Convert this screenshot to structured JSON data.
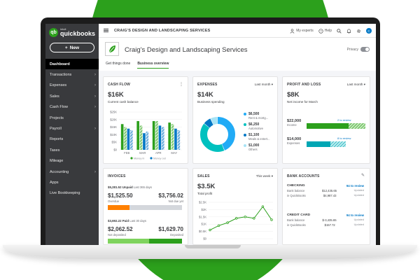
{
  "app": {
    "logo_small": "intuit",
    "logo_name": "quickbooks",
    "new_button": "New"
  },
  "sidebar": {
    "items": [
      {
        "label": "Dashboard",
        "active": true,
        "chevron": false
      },
      {
        "label": "Transactions",
        "chevron": true
      },
      {
        "label": "Expenses",
        "chevron": true
      },
      {
        "label": "Sales",
        "chevron": true
      },
      {
        "label": "Cash Flow",
        "chevron": true
      },
      {
        "label": "Projects",
        "chevron": false
      },
      {
        "label": "Payroll",
        "chevron": true
      },
      {
        "label": "Reports",
        "chevron": false
      },
      {
        "label": "Taxes",
        "chevron": false
      },
      {
        "label": "Mileage",
        "chevron": false
      },
      {
        "label": "Accounting",
        "chevron": true
      },
      {
        "label": "Apps",
        "chevron": false
      },
      {
        "label": "Live Bookkeeping",
        "chevron": false
      }
    ]
  },
  "topbar": {
    "company": "CRAIG'S DESIGN AND LANDSCAPING SERVICES",
    "my_experts": "My experts",
    "help": "Help",
    "avatar_initial": "C"
  },
  "header": {
    "title": "Craig's Design and Landscaping Services",
    "privacy": "Privacy",
    "tabs": [
      "Get things done",
      "Business overview"
    ],
    "active_tab": 1
  },
  "cash_flow": {
    "title": "CASH FLOW",
    "value": "$16K",
    "label": "Current cash balance"
  },
  "expenses": {
    "title": "EXPENSES",
    "period": "Last month",
    "value": "$14K",
    "label": "Business spending",
    "items": [
      {
        "amount": "$6,500",
        "label": "Rent & mortg...",
        "color": "#21abf6"
      },
      {
        "amount": "$6,250",
        "label": "Automotive",
        "color": "#00c1bf"
      },
      {
        "amount": "$1,100",
        "label": "Meals & entert...",
        "color": "#0077c5"
      },
      {
        "amount": "$1,000",
        "label": "Others",
        "color": "#a8e3f5"
      }
    ]
  },
  "profit_loss": {
    "title": "PROFIT AND LOSS",
    "period": "Last month",
    "value": "$8K",
    "label": "Net income for March",
    "income_amount": "$22,000",
    "income_label": "Income",
    "income_review": "2 to review",
    "expense_amount": "$14,000",
    "expense_label": "Expenses",
    "expense_review": "8 to review"
  },
  "invoices": {
    "title": "INVOICES",
    "unpaid_total": "$5,281.52 Unpaid",
    "unpaid_period": "Last 365 days",
    "overdue_value": "$1,525.50",
    "overdue_label": "Overdue",
    "notdue_value": "$3,756.02",
    "notdue_label": "Not due yet",
    "paid_total": "$3,692.22 Paid",
    "paid_period": "Last 30 days",
    "notdeposited_value": "$2,062.52",
    "notdeposited_label": "Not deposited",
    "deposited_value": "$1,629.70",
    "deposited_label": "Deposited",
    "overdue_fraction": 0.29,
    "notdeposited_fraction": 0.56
  },
  "sales": {
    "title": "SALES",
    "period": "This week",
    "value": "$3.5K",
    "label": "Total profit"
  },
  "bank": {
    "title": "BANK ACCOUNTS",
    "accounts": [
      {
        "name": "CHECKING",
        "review": "94 to review",
        "bank_label": "Bank balance",
        "bank_value": "$12,435.65",
        "qb_label": "in QuickBooks",
        "qb_value": "$4,987.43",
        "updated": "Updated"
      },
      {
        "name": "CREDIT CARD",
        "review": "94 to review",
        "bank_label": "Bank balance",
        "bank_value": "$-3,435.65",
        "qb_label": "in QuickBooks",
        "qb_value": "$157.72",
        "updated": "Updated"
      }
    ]
  },
  "chart_data": [
    {
      "type": "bar",
      "title": "CASH FLOW",
      "categories": [
        "FEB",
        "MAR",
        "APR",
        "MAY"
      ],
      "ylim": [
        0,
        25
      ],
      "yticks": [
        "$0",
        "$5K",
        "$10K",
        "$15K",
        "$20K",
        "$25K"
      ],
      "series": [
        {
          "name": "Money in",
          "values": [
            17,
            19,
            19,
            18
          ],
          "color": "#2ca01c",
          "pattern": "solid"
        },
        {
          "name": "Money out",
          "values": [
            15,
            16,
            19,
            17
          ],
          "color": "#2ca01c",
          "pattern": "hatched"
        },
        {
          "name": "",
          "values": [
            14,
            11,
            16,
            14
          ],
          "color": "#0077c5",
          "pattern": "solid"
        },
        {
          "name": "",
          "values": [
            13,
            12,
            15,
            13
          ],
          "color": "#0077c5",
          "pattern": "hatched"
        }
      ],
      "legend_position": "bottom"
    },
    {
      "type": "pie",
      "title": "EXPENSES",
      "categories": [
        "Rent & mortg...",
        "Automotive",
        "Meals & entert...",
        "Others"
      ],
      "values": [
        6500,
        6250,
        1100,
        1000
      ],
      "colors": [
        "#21abf6",
        "#00c1bf",
        "#0077c5",
        "#a8e3f5"
      ],
      "donut": true
    },
    {
      "type": "line",
      "title": "SALES",
      "x": [
        1,
        2,
        3,
        4,
        5,
        6,
        7,
        8
      ],
      "values": [
        0.6,
        0.9,
        1.1,
        1.4,
        1.5,
        1.4,
        2.2,
        1.3
      ],
      "ylim": [
        0,
        2.5
      ],
      "yticks": [
        "$0",
        "$0.5K",
        "$1K",
        "$1.5K",
        "$2K",
        "$2.5K"
      ],
      "color": "#2ca01c",
      "markers": true
    }
  ]
}
